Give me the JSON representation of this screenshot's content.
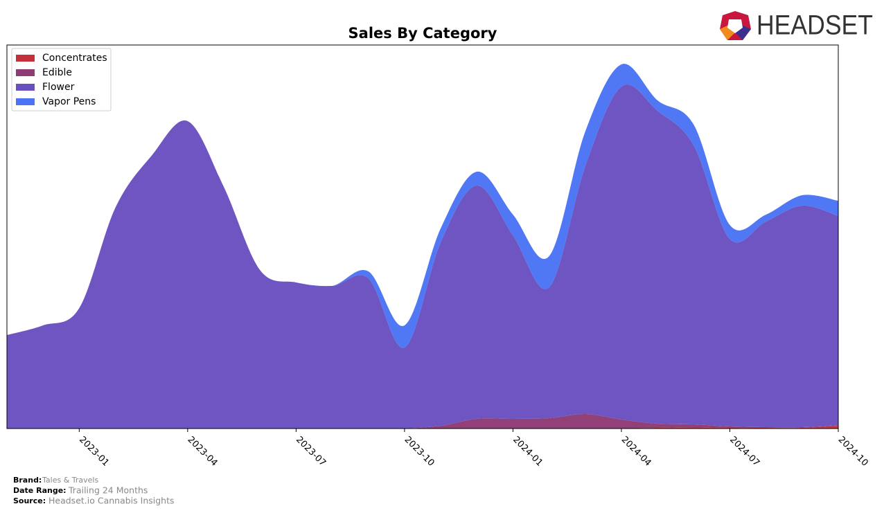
{
  "chart_data": {
    "type": "stacked-area",
    "title": "Sales By Category",
    "x": [
      "2022-11",
      "2022-12",
      "2023-01",
      "2023-02",
      "2023-03",
      "2023-04",
      "2023-05",
      "2023-06",
      "2023-07",
      "2023-08",
      "2023-09",
      "2023-10",
      "2023-11",
      "2023-12",
      "2024-01",
      "2024-02",
      "2024-03",
      "2024-04",
      "2024-05",
      "2024-06",
      "2024-07",
      "2024-08",
      "2024-09",
      "2024-10"
    ],
    "xlim": [
      "2022-11",
      "2024-10"
    ],
    "xticks": [
      "2023-01",
      "2023-04",
      "2023-07",
      "2023-10",
      "2024-01",
      "2024-04",
      "2024-07",
      "2024-10"
    ],
    "ylim": [
      0,
      554
    ],
    "legend": "upper left",
    "series": [
      {
        "name": "Concentrates",
        "color": "#c4303a",
        "values": [
          0,
          0,
          0,
          0,
          0,
          0,
          0,
          0,
          0,
          0,
          0,
          0,
          0,
          0,
          0,
          0,
          0,
          0,
          1,
          2,
          1,
          1,
          1,
          4
        ]
      },
      {
        "name": "Edible",
        "color": "#8e3b74",
        "values": [
          0,
          0,
          0,
          0,
          0,
          0,
          0,
          0,
          0,
          0,
          0,
          0,
          4,
          14,
          14,
          15,
          21,
          13,
          6,
          4,
          2,
          1,
          1,
          1
        ]
      },
      {
        "name": "Flower",
        "color": "#6a4fbf",
        "values": [
          135,
          149,
          174,
          319,
          394,
          444,
          349,
          229,
          211,
          206,
          217,
          117,
          265,
          337,
          265,
          189,
          358,
          481,
          452,
          403,
          271,
          297,
          320,
          302
        ]
      },
      {
        "name": "Vapor Pens",
        "color": "#4a74f5",
        "values": [
          0,
          0,
          0,
          0,
          0,
          0,
          0,
          0,
          0,
          0,
          10,
          32,
          20,
          20,
          30,
          45,
          50,
          32,
          15,
          30,
          20,
          10,
          15,
          22
        ]
      }
    ]
  },
  "logo_text": "HEADSET",
  "footer": {
    "brand_label": "Brand:",
    "brand": "Tales & Travels",
    "range_label": "Date Range:",
    "range": "Trailing 24 Months",
    "source_label": "Source:",
    "source": "Headset.io Cannabis Insights"
  }
}
